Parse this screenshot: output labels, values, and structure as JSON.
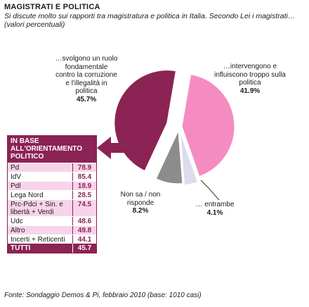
{
  "header": {
    "title": "MAGISTRATI E POLITICA",
    "subtitle": "Si discute molto sui rapporti tra magistratura e politica in Italia. Secondo Lei i magistrati… (valori percentuali)"
  },
  "chart_data": [
    {
      "type": "pie",
      "slices": [
        {
          "label": "…svolgono un ruolo fondamentale contro la corruzione e l'illegalità in politica",
          "value": 45.7,
          "value_label": "45.7%",
          "color": "#8b2354"
        },
        {
          "label": "…intervengono e influiscono troppo sulla politica",
          "value": 41.9,
          "value_label": "41.9%",
          "color": "#f58cc1"
        },
        {
          "label": "… entrambe",
          "value": 4.1,
          "value_label": "4.1%",
          "color": "#dcdcec"
        },
        {
          "label": "Non sa / non risponde",
          "value": 8.2,
          "value_label": "8.2%",
          "color": "#8c8c8c"
        }
      ]
    },
    {
      "type": "table",
      "header": "IN BASE ALL'ORIENTAMENTO POLITICO",
      "rows": [
        {
          "name": "Pd",
          "value": "78.9"
        },
        {
          "name": "IdV",
          "value": "85.4"
        },
        {
          "name": "Pdl",
          "value": "18.9"
        },
        {
          "name": "Lega Nord",
          "value": "28.5"
        },
        {
          "name": "Prc-Pdci + Sin. e libertà + Verdi",
          "value": "74.5"
        },
        {
          "name": "Udc",
          "value": "48.6"
        },
        {
          "name": "Altro",
          "value": "49.8"
        },
        {
          "name": "Incerti + Reticenti",
          "value": "44.1"
        }
      ],
      "total": {
        "name": "TUTTI",
        "value": "45.7"
      }
    }
  ],
  "footer": {
    "source": "Fonte: Sondaggio Demos & Pi, febbraio 2010 (base: 1010 casi)"
  }
}
